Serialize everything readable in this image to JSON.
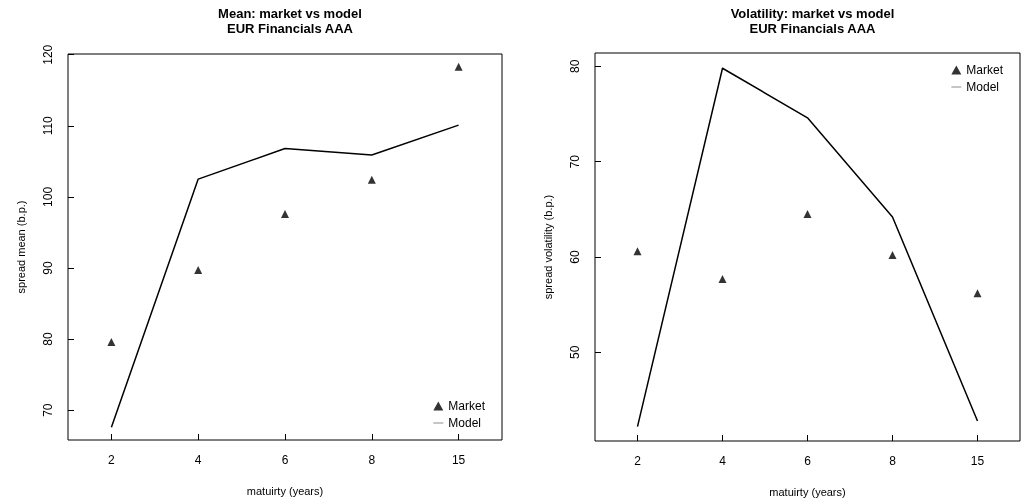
{
  "chart_data": [
    {
      "type": "line",
      "title": "Mean: market vs model",
      "subtitle": "EUR Financials AAA",
      "xlabel": "matuirty (years)",
      "ylabel": "spread mean (b.p.)",
      "categories": [
        "2",
        "4",
        "6",
        "8",
        "15"
      ],
      "ylim": [
        65.8,
        120.1
      ],
      "yticks": [
        70,
        80,
        90,
        100,
        110,
        120
      ],
      "grid": false,
      "legend": "bottom right",
      "series": [
        {
          "name": "Market",
          "type": "scatter",
          "marker": "triangle",
          "color": "#000000",
          "values": [
            79.6,
            89.7,
            97.6,
            102.4,
            118.3
          ]
        },
        {
          "name": "Model",
          "type": "line",
          "marker": "none",
          "line_style": "solid",
          "color": "#000000",
          "values": [
            67.6,
            102.5,
            106.8,
            105.9,
            110.1
          ]
        }
      ]
    },
    {
      "type": "line",
      "title": "Volatility: market vs model",
      "subtitle": "EUR Financials AAA",
      "xlabel": "matuirty (years)",
      "ylabel": "spread volatility (b.p.)",
      "categories": [
        "2",
        "4",
        "6",
        "8",
        "15"
      ],
      "ylim": [
        40.7,
        81.4
      ],
      "yticks": [
        50,
        60,
        70,
        80
      ],
      "grid": false,
      "legend": "top right",
      "series": [
        {
          "name": "Market",
          "type": "scatter",
          "marker": "triangle",
          "color": "#000000",
          "values": [
            60.6,
            57.7,
            64.5,
            60.2,
            56.2
          ]
        },
        {
          "name": "Model",
          "type": "line",
          "marker": "none",
          "line_style": "solid",
          "color": "#000000",
          "values": [
            42.2,
            79.8,
            74.6,
            64.2,
            42.8
          ]
        }
      ]
    }
  ]
}
